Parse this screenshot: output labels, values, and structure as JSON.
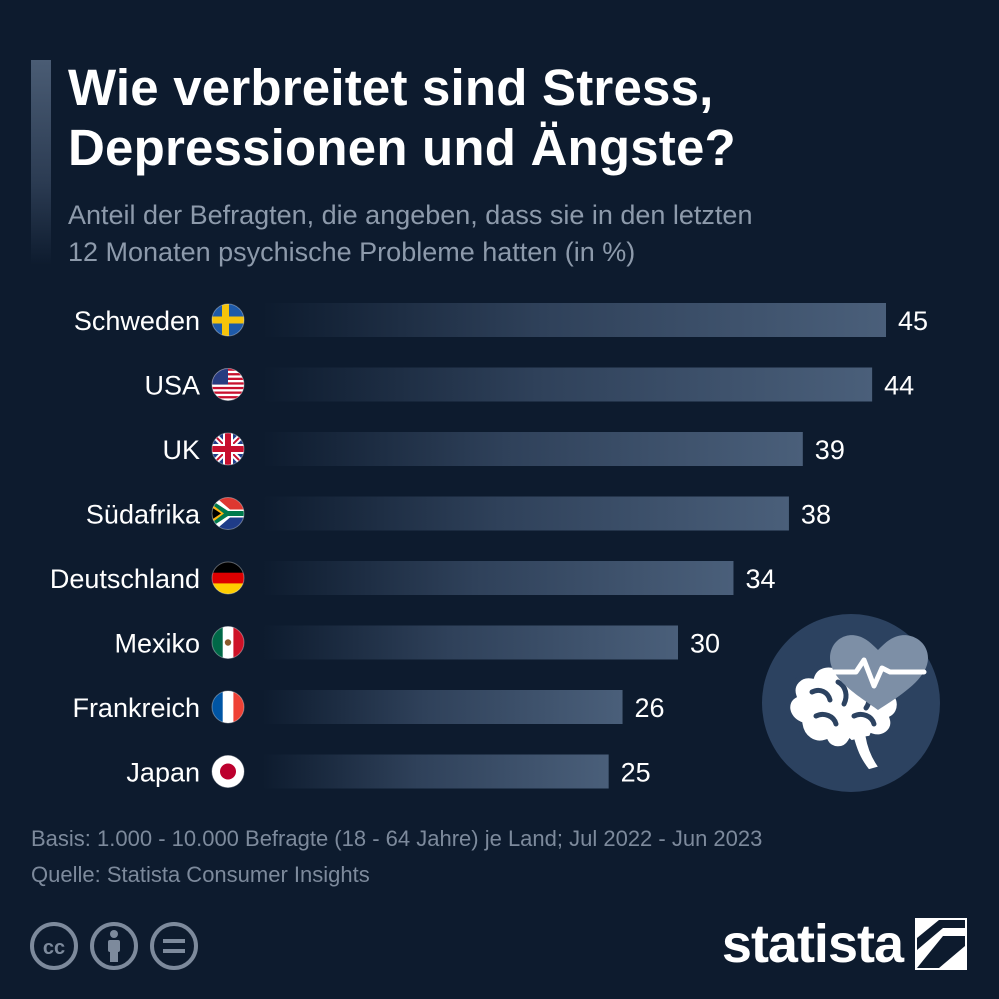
{
  "header": {
    "title_line1": "Wie verbreitet sind Stress,",
    "title_line2": "Depressionen und Ängste?",
    "subtitle_line1": "Anteil der Befragten, die angeben, dass sie in den letzten",
    "subtitle_line2": "12 Monaten psychische Probleme hatten (in %)"
  },
  "chart_data": {
    "type": "bar",
    "orientation": "horizontal",
    "categories": [
      "Schweden",
      "USA",
      "UK",
      "Südafrika",
      "Deutschland",
      "Mexiko",
      "Frankreich",
      "Japan"
    ],
    "values": [
      45,
      44,
      39,
      38,
      34,
      30,
      26,
      25
    ],
    "flags": [
      "se-flag-icon",
      "us-flag-icon",
      "uk-flag-icon",
      "za-flag-icon",
      "de-flag-icon",
      "mx-flag-icon",
      "fr-flag-icon",
      "jp-flag-icon"
    ],
    "xlim": [
      0,
      45
    ],
    "grid": false,
    "legend": "none",
    "bar_color": "#4a5f7a"
  },
  "footer": {
    "basis": "Basis: 1.000 - 10.000 Befragte (18 - 64 Jahre) je Land; Jul 2022 - Jun 2023",
    "source": "Quelle: Statista Consumer Insights"
  },
  "branding": {
    "logo_text": "statista",
    "license_icons": [
      "cc-icon",
      "by-person-icon",
      "nd-equals-icon"
    ]
  },
  "illustration": {
    "icon": "brain-heart-icon"
  },
  "colors": {
    "background": "#0d1b2e",
    "bar_end": "#4a5f7a",
    "subtitle": "#8d9aab",
    "footer": "#7d8a9c"
  }
}
